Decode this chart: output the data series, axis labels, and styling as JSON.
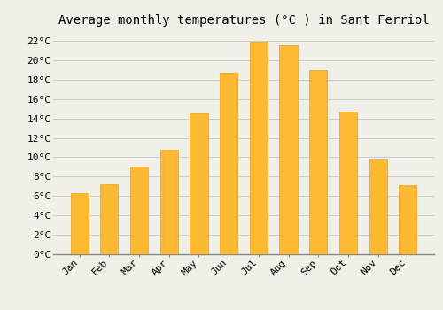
{
  "title": "Average monthly temperatures (°C ) in Sant Ferriol",
  "months": [
    "Jan",
    "Feb",
    "Mar",
    "Apr",
    "May",
    "Jun",
    "Jul",
    "Aug",
    "Sep",
    "Oct",
    "Nov",
    "Dec"
  ],
  "values": [
    6.3,
    7.2,
    9.0,
    10.8,
    14.5,
    18.7,
    21.9,
    21.5,
    19.0,
    14.7,
    9.8,
    7.1
  ],
  "bar_color_main": "#FDB931",
  "bar_color_top": "#E8A020",
  "background_color": "#F0F0E8",
  "grid_color": "#CCCCCC",
  "ylim": [
    0,
    23
  ],
  "yticks": [
    0,
    2,
    4,
    6,
    8,
    10,
    12,
    14,
    16,
    18,
    20,
    22
  ],
  "ytick_labels": [
    "0°C",
    "2°C",
    "4°C",
    "6°C",
    "8°C",
    "10°C",
    "12°C",
    "14°C",
    "16°C",
    "18°C",
    "20°C",
    "22°C"
  ],
  "title_fontsize": 10,
  "tick_fontsize": 8,
  "font_family": "monospace",
  "bar_width": 0.6
}
